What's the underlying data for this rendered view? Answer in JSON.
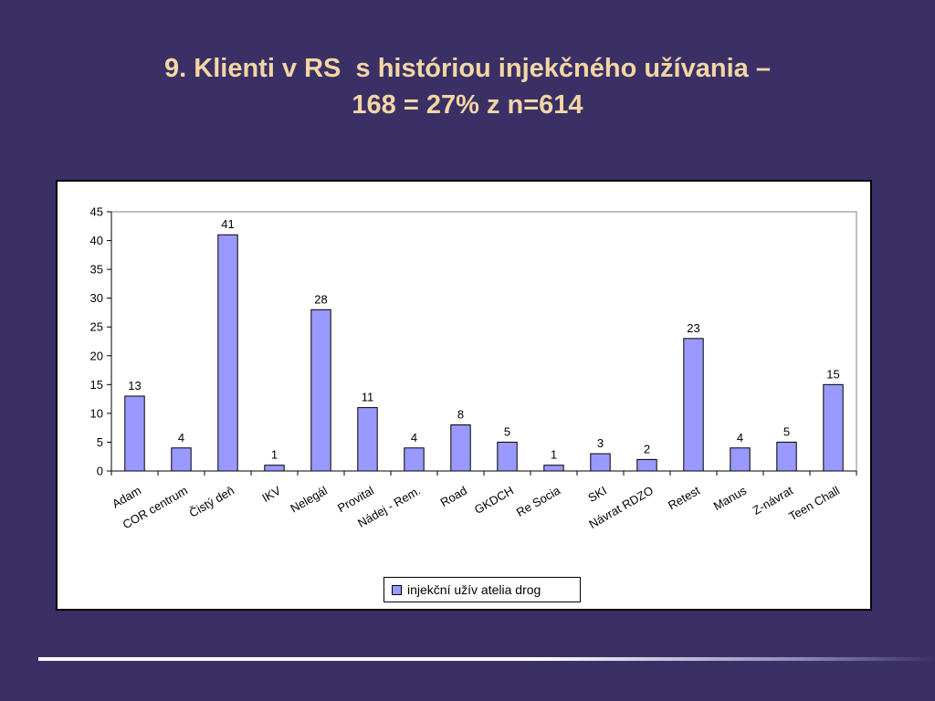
{
  "slide": {
    "title_line1": "9. Klienti v RS  s históriou injekčného užívania –",
    "title_line2": "168 = 27% z n=614"
  },
  "colors": {
    "background": "#3a3066",
    "title": "#f3d6a4",
    "bar_fill": "#9999ff"
  },
  "chart_data": {
    "type": "bar",
    "categories": [
      "Adam",
      "COR centrum",
      "Čistý deň",
      "IKV",
      "Nelegál",
      "Provital",
      "Nádej - Rem.",
      "Road",
      "GKDCH",
      "Re Socia",
      "SKI",
      "Návrat RDZO",
      "Retest",
      "Manus",
      "Z-návrat",
      "Teen Chall"
    ],
    "series": [
      {
        "name": "injekční užív atelia drog",
        "values": [
          13,
          4,
          41,
          1,
          28,
          11,
          4,
          8,
          5,
          1,
          3,
          2,
          23,
          4,
          5,
          15
        ]
      }
    ],
    "ylim": [
      0,
      45
    ],
    "yticks": [
      0,
      5,
      10,
      15,
      20,
      25,
      30,
      35,
      40,
      45
    ],
    "data_labels": true,
    "grid": false,
    "legend_position": "bottom"
  }
}
